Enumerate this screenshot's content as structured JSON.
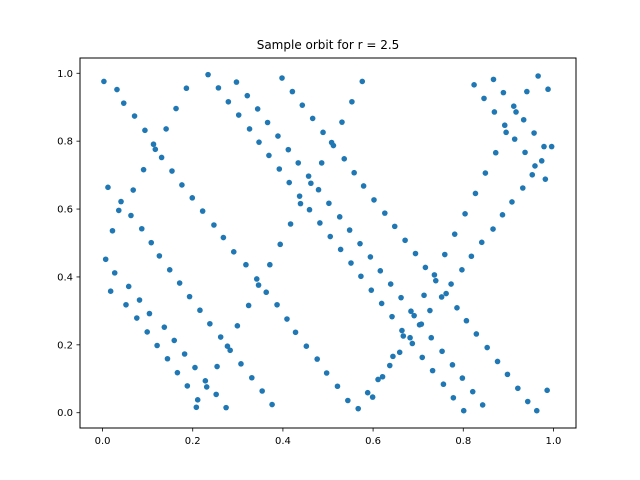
{
  "chart_data": {
    "type": "scatter",
    "title": "Sample orbit for r = 2.5",
    "xlabel": "",
    "ylabel": "",
    "xlim": [
      -0.05,
      1.05
    ],
    "ylim": [
      -0.045,
      1.045
    ],
    "xticks": [
      0.0,
      0.2,
      0.4,
      0.6,
      0.8,
      1.0
    ],
    "yticks": [
      0.0,
      0.2,
      0.4,
      0.6,
      0.8,
      1.0
    ],
    "xtick_labels": [
      "0.0",
      "0.2",
      "0.4",
      "0.6",
      "0.8",
      "1.0"
    ],
    "ytick_labels": [
      "0.0",
      "0.2",
      "0.4",
      "0.6",
      "0.8",
      "1.0"
    ],
    "grid": false,
    "marker_color": "#1f77b4",
    "series": [
      {
        "x": [
          0.003,
          0.032,
          0.047,
          0.071,
          0.094,
          0.113,
          0.131,
          0.154,
          0.176,
          0.199,
          0.222,
          0.247,
          0.268,
          0.291,
          0.318,
          0.342,
          0.363,
          0.387,
          0.409,
          0.428,
          0.452,
          0.476,
          0.497,
          0.521,
          0.544,
          0.567,
          0.588,
          0.611,
          0.637,
          0.659,
          0.682,
          0.703,
          0.726,
          0.752,
          0.773,
          0.797,
          0.818,
          0.841,
          0.866,
          0.887,
          0.908,
          0.932,
          0.953,
          0.974,
          0.996,
          0.012,
          0.041,
          0.063,
          0.087,
          0.108,
          0.126,
          0.149,
          0.171,
          0.193,
          0.216,
          0.238,
          0.262,
          0.283,
          0.307,
          0.331,
          0.354,
          0.376,
          0.398,
          0.421,
          0.443,
          0.466,
          0.489,
          0.512,
          0.536,
          0.558,
          0.579,
          0.602,
          0.626,
          0.648,
          0.671,
          0.694,
          0.716,
          0.739,
          0.762,
          0.786,
          0.807,
          0.829,
          0.853,
          0.876,
          0.898,
          0.921,
          0.943,
          0.966,
          0.988,
          0.018,
          0.052,
          0.076,
          0.099,
          0.121,
          0.144,
          0.166,
          0.188,
          0.211,
          0.234,
          0.257,
          0.279,
          0.302,
          0.326,
          0.347,
          0.369,
          0.392,
          0.414,
          0.437,
          0.459,
          0.482,
          0.505,
          0.528,
          0.551,
          0.573,
          0.596,
          0.619,
          0.642,
          0.664,
          0.687,
          0.709,
          0.732,
          0.756,
          0.778,
          0.801,
          0.824,
          0.846,
          0.869,
          0.892,
          0.914,
          0.937,
          0.959,
          0.982,
          0.007,
          0.027,
          0.058,
          0.082,
          0.104,
          0.137,
          0.159,
          0.182,
          0.205,
          0.228,
          0.252,
          0.274,
          0.297,
          0.321,
          0.344,
          0.366,
          0.389,
          0.412,
          0.434,
          0.457,
          0.479,
          0.502,
          0.526,
          0.548,
          0.571,
          0.594,
          0.616,
          0.639,
          0.662,
          0.684,
          0.707,
          0.729,
          0.753,
          0.776,
          0.798,
          0.821,
          0.843,
          0.867,
          0.889,
          0.912,
          0.934,
          0.957,
          0.979,
          0.022,
          0.036,
          0.068,
          0.091,
          0.117,
          0.141,
          0.163,
          0.186,
          0.208,
          0.231,
          0.254,
          0.277,
          0.299,
          0.324,
          0.346,
          0.371,
          0.394,
          0.417,
          0.439,
          0.462,
          0.486,
          0.508,
          0.531,
          0.553,
          0.576,
          0.599,
          0.621,
          0.644,
          0.667,
          0.691,
          0.713,
          0.736,
          0.759,
          0.781,
          0.804,
          0.827,
          0.849,
          0.872,
          0.895,
          0.917,
          0.941,
          0.963,
          0.986
        ],
        "y": [
          0.976,
          0.952,
          0.912,
          0.874,
          0.832,
          0.791,
          0.752,
          0.712,
          0.671,
          0.633,
          0.594,
          0.553,
          0.516,
          0.474,
          0.436,
          0.394,
          0.355,
          0.318,
          0.276,
          0.237,
          0.196,
          0.158,
          0.117,
          0.078,
          0.036,
          0.012,
          0.059,
          0.098,
          0.139,
          0.178,
          0.221,
          0.259,
          0.301,
          0.341,
          0.379,
          0.421,
          0.461,
          0.502,
          0.541,
          0.583,
          0.621,
          0.662,
          0.701,
          0.742,
          0.784,
          0.664,
          0.622,
          0.581,
          0.542,
          0.501,
          0.462,
          0.421,
          0.382,
          0.342,
          0.302,
          0.262,
          0.223,
          0.184,
          0.144,
          0.103,
          0.064,
          0.024,
          0.986,
          0.946,
          0.906,
          0.867,
          0.826,
          0.787,
          0.748,
          0.707,
          0.668,
          0.627,
          0.588,
          0.549,
          0.508,
          0.469,
          0.428,
          0.389,
          0.351,
          0.309,
          0.271,
          0.232,
          0.192,
          0.151,
          0.113,
          0.072,
          0.033,
          0.992,
          0.953,
          0.358,
          0.318,
          0.279,
          0.238,
          0.198,
          0.159,
          0.118,
          0.079,
          0.038,
          0.996,
          0.957,
          0.916,
          0.877,
          0.836,
          0.797,
          0.758,
          0.718,
          0.678,
          0.638,
          0.598,
          0.559,
          0.519,
          0.481,
          0.441,
          0.402,
          0.361,
          0.322,
          0.283,
          0.242,
          0.204,
          0.163,
          0.124,
          0.084,
          0.044,
          0.006,
          0.966,
          0.926,
          0.886,
          0.847,
          0.806,
          0.767,
          0.727,
          0.688,
          0.452,
          0.412,
          0.372,
          0.332,
          0.292,
          0.252,
          0.213,
          0.173,
          0.133,
          0.094,
          0.054,
          0.015,
          0.974,
          0.934,
          0.895,
          0.855,
          0.815,
          0.775,
          0.736,
          0.697,
          0.657,
          0.617,
          0.577,
          0.538,
          0.498,
          0.459,
          0.418,
          0.379,
          0.339,
          0.299,
          0.261,
          0.221,
          0.181,
          0.141,
          0.102,
          0.062,
          0.023,
          0.982,
          0.943,
          0.903,
          0.863,
          0.824,
          0.784,
          0.536,
          0.596,
          0.656,
          0.716,
          0.776,
          0.836,
          0.896,
          0.956,
          0.016,
          0.076,
          0.136,
          0.196,
          0.256,
          0.316,
          0.376,
          0.436,
          0.496,
          0.556,
          0.616,
          0.676,
          0.736,
          0.796,
          0.856,
          0.916,
          0.976,
          0.046,
          0.106,
          0.166,
          0.226,
          0.286,
          0.346,
          0.406,
          0.466,
          0.526,
          0.586,
          0.646,
          0.706,
          0.766,
          0.826,
          0.886,
          0.946,
          0.006,
          0.066
        ]
      }
    ]
  }
}
